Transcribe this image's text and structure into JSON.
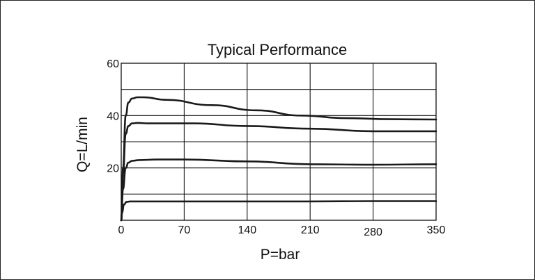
{
  "chart_data": {
    "type": "line",
    "title": "Typical Performance",
    "xlabel": "P=bar",
    "ylabel": "Q=L/min",
    "xlim": [
      0,
      350
    ],
    "ylim": [
      0,
      60
    ],
    "x_ticks": [
      0,
      70,
      140,
      210,
      280,
      350
    ],
    "y_ticks": [
      20,
      40,
      60
    ],
    "grid": true,
    "y_grid": [
      10,
      20,
      30,
      40,
      50,
      60
    ],
    "series": [
      {
        "x": [
          0,
          2,
          5,
          8,
          12,
          18,
          25,
          50,
          100,
          150,
          200,
          250,
          300,
          350
        ],
        "values": [
          0,
          20,
          40,
          45,
          46.5,
          47,
          47,
          46,
          44,
          42,
          40,
          39,
          38.6,
          38.5
        ]
      },
      {
        "x": [
          0,
          2,
          5,
          8,
          12,
          18,
          30,
          60,
          80,
          140,
          210,
          280,
          350
        ],
        "values": [
          0,
          18,
          33,
          36,
          37,
          37.2,
          37,
          37,
          37,
          36,
          35,
          34,
          34
        ]
      },
      {
        "x": [
          0,
          2,
          5,
          8,
          12,
          20,
          40,
          70,
          140,
          210,
          280,
          350
        ],
        "values": [
          0,
          12,
          20,
          22,
          22.7,
          23,
          23.2,
          23.2,
          22.5,
          21.4,
          21.2,
          21.4
        ]
      },
      {
        "x": [
          0,
          1,
          3,
          6,
          10,
          20,
          70,
          140,
          210,
          280,
          350
        ],
        "values": [
          0,
          3,
          6,
          7,
          7.2,
          7.2,
          7.2,
          7.2,
          7.2,
          7.3,
          7.3
        ]
      }
    ]
  }
}
